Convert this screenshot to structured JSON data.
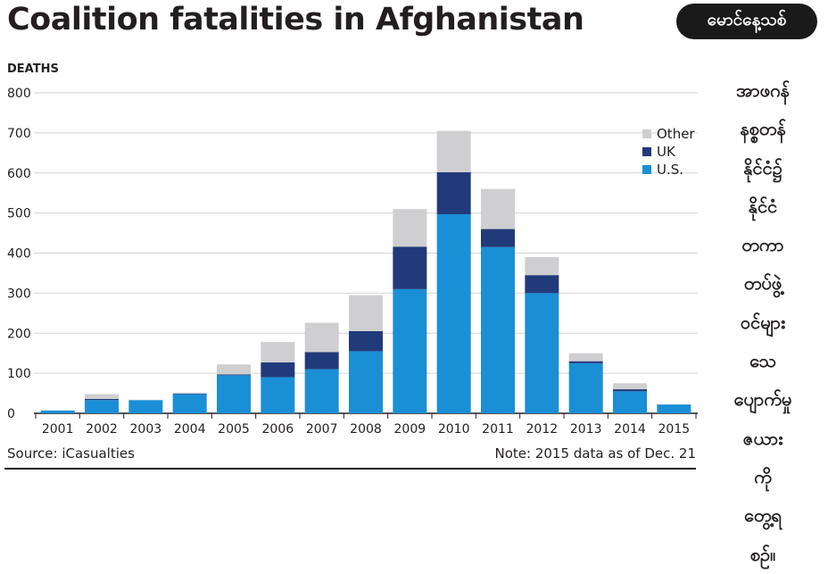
{
  "chart_data": {
    "type": "bar",
    "stacked": true,
    "title": "Coalition fatalities in Afghanistan",
    "ylabel": "DEATHS",
    "ylim": [
      0,
      800
    ],
    "yticks": [
      0,
      100,
      200,
      300,
      400,
      500,
      600,
      700,
      800
    ],
    "grid": true,
    "legend_position": "top-right",
    "categories": [
      "2001",
      "2002",
      "2003",
      "2004",
      "2005",
      "2006",
      "2007",
      "2008",
      "2009",
      "2010",
      "2011",
      "2012",
      "2013",
      "2014",
      "2015"
    ],
    "series": [
      {
        "name": "U.S.",
        "color": "#1a8fd6",
        "values": [
          7,
          33,
          33,
          48,
          95,
          90,
          110,
          155,
          310,
          497,
          415,
          300,
          125,
          55,
          22
        ]
      },
      {
        "name": "UK",
        "color": "#213a7a",
        "values": [
          0,
          3,
          0,
          1,
          2,
          37,
          43,
          50,
          106,
          105,
          45,
          45,
          5,
          5,
          0
        ]
      },
      {
        "name": "Other",
        "color": "#cfcfd1",
        "values": [
          1,
          12,
          1,
          3,
          25,
          51,
          73,
          90,
          94,
          103,
          100,
          45,
          20,
          15,
          0
        ]
      }
    ],
    "source": "Source: iCasualties",
    "note": "Note: 2015 data as of Dec. 21"
  },
  "badge": "မောင်နေ့သစ်",
  "side_text": [
    "အာဖဂန်",
    "နစ္စတန်",
    "နိုင်ငံ၌",
    "နိုင်ငံ",
    "တကာ",
    "တပ်ဖွဲ့",
    "ဝင်များ",
    "သေ",
    "ပျောက်မှု",
    "ဇယား",
    "ကို",
    "တွေ့ရ",
    "စဉ်။"
  ]
}
